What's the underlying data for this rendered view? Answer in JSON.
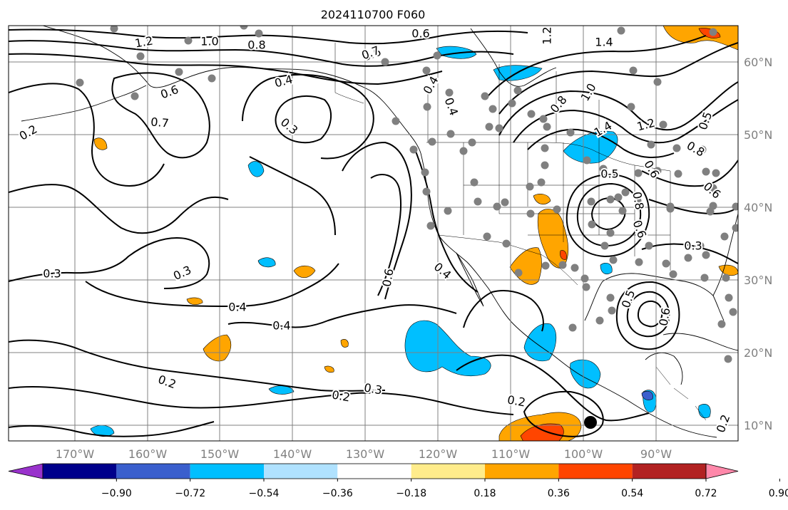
{
  "title": "2024110700 F060",
  "longitude_labels": [
    "170°W",
    "160°W",
    "150°W",
    "140°W",
    "130°W",
    "120°W",
    "110°W",
    "100°W",
    "90°W"
  ],
  "latitude_labels": [
    "10°N",
    "20°N",
    "30°N",
    "40°N",
    "50°N",
    "60°N"
  ],
  "colorbar": {
    "tick_labels": [
      "−0.90",
      "−0.72",
      "−0.54",
      "−0.36",
      "−0.18",
      "0.18",
      "0.36",
      "0.54",
      "0.72",
      "0.90"
    ],
    "colors": [
      "#9932cc",
      "#00008b",
      "#3a5fcd",
      "#00bfff",
      "#b0e2ff",
      "#ffffff",
      "#ffec8b",
      "#ffa500",
      "#ff4500",
      "#b22222",
      "#ff88aa"
    ]
  },
  "contour_labels": [
    {
      "text": "1.2"
    },
    {
      "text": "1.0"
    },
    {
      "text": "0.8"
    },
    {
      "text": "0.6"
    },
    {
      "text": "0.7"
    },
    {
      "text": "0.6"
    },
    {
      "text": "0.6"
    },
    {
      "text": "0.4"
    },
    {
      "text": "0.3"
    },
    {
      "text": "0.2"
    },
    {
      "text": "0.7"
    },
    {
      "text": "0.4"
    },
    {
      "text": "0.4"
    },
    {
      "text": "1.2"
    },
    {
      "text": "1.4"
    },
    {
      "text": "0.8"
    },
    {
      "text": "1.0"
    },
    {
      "text": "1.4"
    },
    {
      "text": "1.2"
    },
    {
      "text": "0.5"
    },
    {
      "text": "0.5"
    },
    {
      "text": "0.6"
    },
    {
      "text": "0.8"
    },
    {
      "text": "0.6"
    },
    {
      "text": "0.8"
    },
    {
      "text": "0.6"
    },
    {
      "text": "0.3"
    },
    {
      "text": "0.3"
    },
    {
      "text": "0.3"
    },
    {
      "text": "0.4"
    },
    {
      "text": "0.4"
    },
    {
      "text": "0.6"
    },
    {
      "text": "0.4"
    },
    {
      "text": "0.5"
    },
    {
      "text": "0.6"
    },
    {
      "text": "0.2"
    },
    {
      "text": "0.2"
    },
    {
      "text": "0.3"
    },
    {
      "text": "0.2"
    },
    {
      "text": "0.2"
    }
  ]
}
